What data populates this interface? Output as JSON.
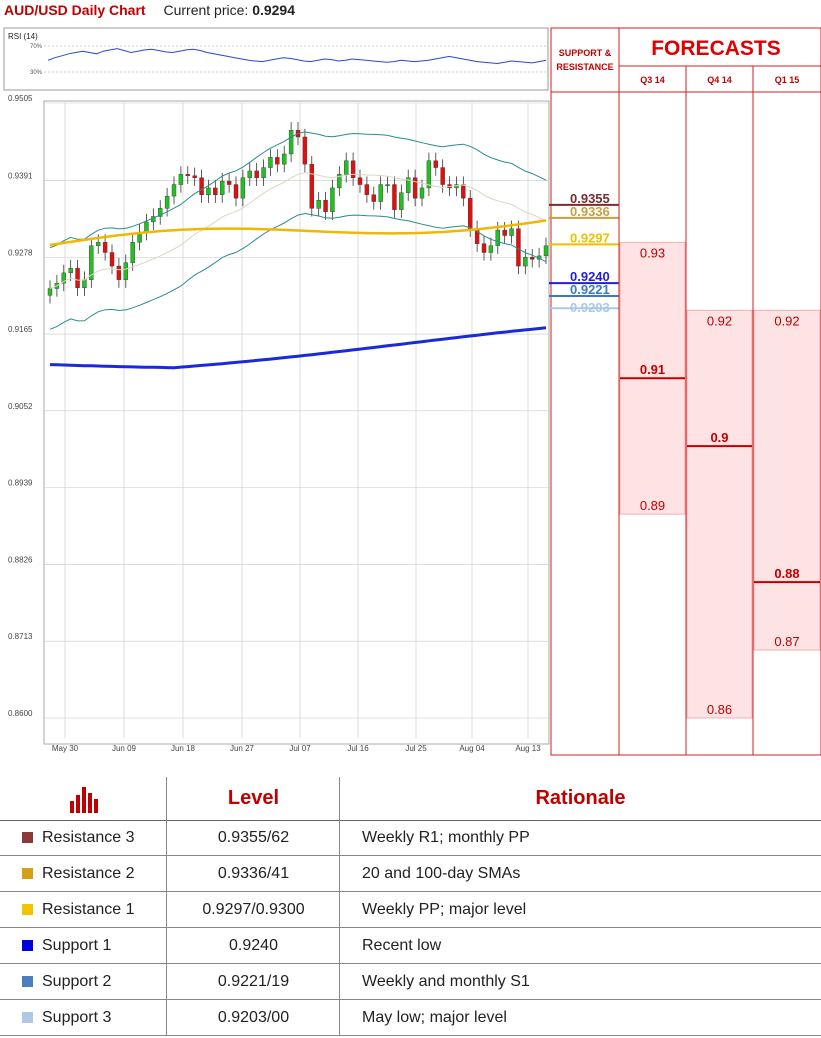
{
  "header": {
    "title": "AUD/USD Daily Chart",
    "price_label": "Current price:",
    "price_value": "0.9294"
  },
  "chart_data": [
    {
      "type": "line",
      "name_label": "RSI (14)",
      "y_ticks": [
        "70%",
        "30%"
      ],
      "values": [
        48,
        52,
        55,
        58,
        60,
        62,
        60,
        58,
        62,
        64,
        66,
        63,
        60,
        62,
        64,
        65,
        63,
        61,
        60,
        62,
        64,
        65,
        63,
        60,
        58,
        56,
        54,
        52,
        50,
        48,
        47,
        46,
        48,
        50,
        52,
        51,
        49,
        47,
        46,
        48,
        50,
        49,
        47,
        48,
        50,
        49,
        48,
        47,
        46,
        45,
        46,
        48,
        47,
        46,
        47,
        48,
        50,
        52,
        54,
        52,
        50,
        48,
        46,
        45,
        44,
        43,
        45,
        47,
        46,
        45,
        44,
        46,
        48
      ],
      "grid": true
    },
    {
      "type": "candlestick",
      "y_ticks": [
        "0.9505",
        "0.9391",
        "0.9278",
        "0.9165",
        "0.9052",
        "0.8939",
        "0.8826",
        "0.8713",
        "0.8600"
      ],
      "ylim": [
        0.86,
        0.9505
      ],
      "x_ticks": [
        "May 30",
        "Jun 09",
        "Jun 18",
        "Jun 27",
        "Jul 07",
        "Jul 16",
        "Jul 25",
        "Aug 04",
        "Aug 13"
      ],
      "grid": true
    },
    {
      "type": "bar",
      "title": "FORECASTS",
      "categories": [
        "Q3 14",
        "Q4 14",
        "Q1 15"
      ],
      "ylim": [
        0.86,
        0.9505
      ],
      "ranges": [
        {
          "high": 0.93,
          "median": 0.91,
          "low": 0.89,
          "high_label": "0.93",
          "median_label": "0.91",
          "low_label": "0.89"
        },
        {
          "high": 0.92,
          "median": 0.9,
          "low": 0.86,
          "high_label": "0.92",
          "median_label": "0.9",
          "low_label": "0.86"
        },
        {
          "high": 0.92,
          "median": 0.88,
          "low": 0.87,
          "high_label": "0.92",
          "median_label": "0.88",
          "low_label": "0.87"
        }
      ]
    }
  ],
  "sr_panel": {
    "title_line1": "SUPPORT &",
    "title_line2": "RESISTANCE",
    "levels": [
      {
        "value": 0.9355,
        "label": "0.9355",
        "color": "#7b2c2c"
      },
      {
        "value": 0.9336,
        "label": "0.9336",
        "color": "#c8a040"
      },
      {
        "value": 0.9297,
        "label": "0.9297",
        "color": "#f0c000"
      },
      {
        "value": 0.924,
        "label": "0.9240",
        "color": "#1f1fd8"
      },
      {
        "value": 0.9221,
        "label": "0.9221",
        "color": "#3a7ac0"
      },
      {
        "value": 0.9203,
        "label": "0.9203",
        "color": "#a9c8e8"
      }
    ]
  },
  "table": {
    "col_level": "Level",
    "col_rationale": "Rationale",
    "rows": [
      {
        "name": "Resistance 3",
        "level": "0.9355/62",
        "rationale": "Weekly R1; monthly PP",
        "color": "#8b3a3a"
      },
      {
        "name": "Resistance 2",
        "level": "0.9336/41",
        "rationale": "20 and 100-day SMAs",
        "color": "#d4a017"
      },
      {
        "name": "Resistance 1",
        "level": "0.9297/0.9300",
        "rationale": "Weekly PP; major level",
        "color": "#f5c400"
      },
      {
        "name": "Support 1",
        "level": "0.9240",
        "rationale": "Recent low",
        "color": "#0000e0"
      },
      {
        "name": "Support 2",
        "level": "0.9221/19",
        "rationale": "Weekly and monthly S1",
        "color": "#4a7fc0"
      },
      {
        "name": "Support 3",
        "level": "0.9203/00",
        "rationale": "May low; major level",
        "color": "#b0c8e6"
      }
    ]
  }
}
